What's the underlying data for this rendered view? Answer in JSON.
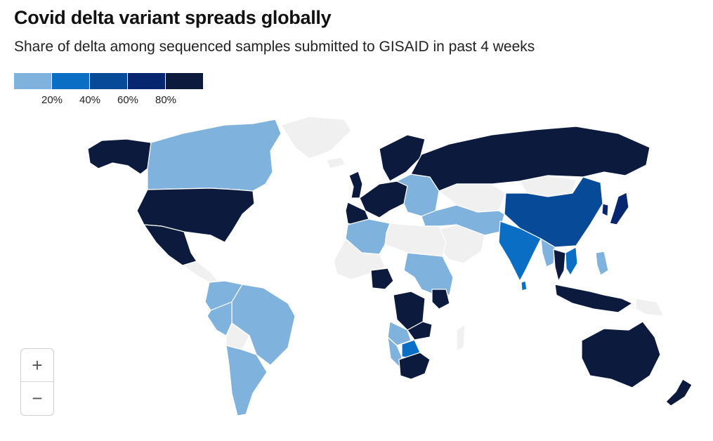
{
  "header": {
    "title": "Covid delta variant spreads globally",
    "subtitle": "Share of delta among sequenced samples submitted to GISAID in past 4 weeks"
  },
  "legend": {
    "bins": [
      {
        "label": "",
        "color": "#7fb2dd"
      },
      {
        "label": "20%",
        "color": "#0a6fc4"
      },
      {
        "label": "40%",
        "color": "#074a98"
      },
      {
        "label": "60%",
        "color": "#062670"
      },
      {
        "label": "80%",
        "color": "#0b1a3d"
      }
    ],
    "ticks": [
      "20%",
      "40%",
      "60%",
      "80%"
    ]
  },
  "colors": {
    "no_data": "#f0f0f0",
    "border": "#ffffff"
  },
  "zoom": {
    "in_label": "+",
    "out_label": "−"
  },
  "regions": [
    {
      "name": "alaska",
      "level": 5
    },
    {
      "name": "canada",
      "level": 1
    },
    {
      "name": "greenland",
      "level": 0
    },
    {
      "name": "usa",
      "level": 5
    },
    {
      "name": "mexico",
      "level": 5
    },
    {
      "name": "central-america",
      "level": 0
    },
    {
      "name": "colombia-ecuador",
      "level": 1
    },
    {
      "name": "brazil",
      "level": 1
    },
    {
      "name": "peru",
      "level": 1
    },
    {
      "name": "bolivia",
      "level": 0
    },
    {
      "name": "argentina-chile",
      "level": 1
    },
    {
      "name": "iceland",
      "level": 0
    },
    {
      "name": "scandinavia",
      "level": 5
    },
    {
      "name": "uk",
      "level": 5
    },
    {
      "name": "western-europe",
      "level": 5
    },
    {
      "name": "iberia",
      "level": 5
    },
    {
      "name": "eastern-europe",
      "level": 1
    },
    {
      "name": "russia",
      "level": 5
    },
    {
      "name": "kazakhstan",
      "level": 0
    },
    {
      "name": "mongolia",
      "level": 0
    },
    {
      "name": "china",
      "level": 3
    },
    {
      "name": "japan",
      "level": 4
    },
    {
      "name": "korea",
      "level": 4
    },
    {
      "name": "middle-east",
      "level": 1
    },
    {
      "name": "arabia",
      "level": 0
    },
    {
      "name": "india",
      "level": 2
    },
    {
      "name": "sri-lanka",
      "level": 2
    },
    {
      "name": "myanmar",
      "level": 1
    },
    {
      "name": "thailand",
      "level": 5
    },
    {
      "name": "vietnam",
      "level": 2
    },
    {
      "name": "philippines",
      "level": 1
    },
    {
      "name": "indonesia",
      "level": 5
    },
    {
      "name": "png",
      "level": 0
    },
    {
      "name": "north-africa",
      "level": 0
    },
    {
      "name": "algeria",
      "level": 1
    },
    {
      "name": "nigeria",
      "level": 5
    },
    {
      "name": "west-africa",
      "level": 0
    },
    {
      "name": "east-africa",
      "level": 1
    },
    {
      "name": "kenya",
      "level": 5
    },
    {
      "name": "drc",
      "level": 5
    },
    {
      "name": "angola",
      "level": 1
    },
    {
      "name": "zambia",
      "level": 5
    },
    {
      "name": "botswana",
      "level": 2
    },
    {
      "name": "namibia",
      "level": 1
    },
    {
      "name": "south-africa",
      "level": 5
    },
    {
      "name": "madagascar",
      "level": 0
    },
    {
      "name": "australia",
      "level": 5
    },
    {
      "name": "new-zealand",
      "level": 5
    }
  ]
}
